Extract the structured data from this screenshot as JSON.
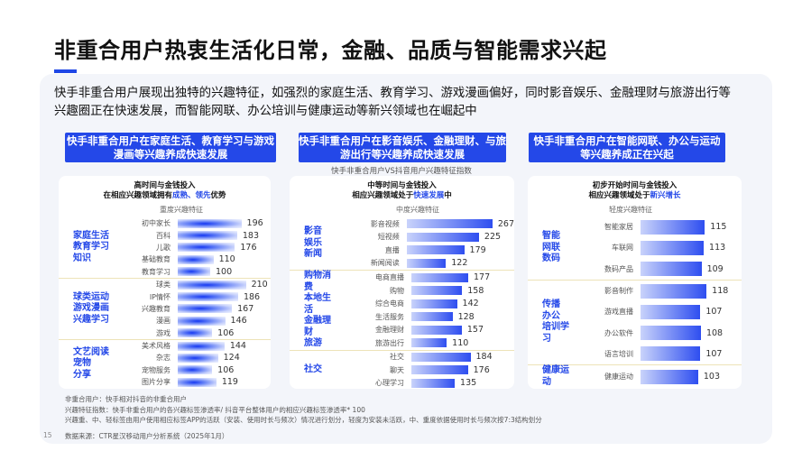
{
  "title": "非重合用户热衷生活化日常，金融、品质与智能需求兴起",
  "description": "快手非重合用户展现出独特的兴趣特征，如强烈的家庭生活、教育学习、游戏漫画偏好，同时影音娱乐、金融理财与旅游出行等兴趣圈正在快速发展，而智能网联、办公培训与健康运动等新兴领域也在崛起中",
  "headers": [
    "快手非重合用户在家庭生活、教育学习与游戏漫画等兴趣养成快速发展",
    "快手非重合用户在影音娱乐、金融理财、与旅游出行等兴趣养成快速发展",
    "快手非重合用户在智能网联、办公与运动等兴趣养成正在兴起"
  ],
  "subtitle": "快手非重合用户VS抖音用户兴趣特征指数",
  "colors": {
    "accent": "#2448e8"
  },
  "panels": [
    {
      "title1": "高时间与金钱投入",
      "title2_pre": "在相应兴趣领域拥有",
      "title2_hl": "成熟、领先",
      "title2_post": "优势",
      "level": "重度兴趣特征",
      "groups": [
        {
          "label": "家庭生活\n教育学习\n知识",
          "items": [
            [
              "初中家长",
              196
            ],
            [
              "百科",
              183
            ],
            [
              "儿歌",
              176
            ],
            [
              "基础教育",
              110
            ],
            [
              "教育学习",
              100
            ]
          ]
        },
        {
          "label": "球类运动\n游戏漫画\n兴趣学习",
          "items": [
            [
              "球类",
              210
            ],
            [
              "IP情怀",
              186
            ],
            [
              "兴趣教育",
              167
            ],
            [
              "漫画",
              146
            ],
            [
              "游戏",
              106
            ]
          ]
        },
        {
          "label": "文艺阅读\n宠物\n分享",
          "items": [
            [
              "美术风格",
              144
            ],
            [
              "杂志",
              124
            ],
            [
              "宠物服务",
              106
            ],
            [
              "图片分享",
              119
            ]
          ]
        }
      ]
    },
    {
      "title1": "中等时间与金钱投入",
      "title2_pre": "相应兴趣领域处于",
      "title2_hl": "快速发展",
      "title2_post": "中",
      "level": "中度兴趣特征",
      "groups": [
        {
          "label": "影音娱乐\n新闻",
          "items": [
            [
              "影音视频",
              267
            ],
            [
              "短视频",
              225
            ],
            [
              "直播",
              179
            ],
            [
              "新闻阅读",
              122
            ]
          ]
        },
        {
          "label": "购物消费\n本地生活\n金融理财\n旅游",
          "items": [
            [
              "电商直播",
              177
            ],
            [
              "购物",
              158
            ],
            [
              "综合电商",
              142
            ],
            [
              "生活服务",
              128
            ],
            [
              "金融理财",
              157
            ],
            [
              "旅游出行",
              110
            ]
          ]
        },
        {
          "label": "社交",
          "items": [
            [
              "社交",
              184
            ],
            [
              "聊天",
              176
            ],
            [
              "心理学习",
              135
            ]
          ]
        }
      ]
    },
    {
      "title1": "初步开始时间与金钱投入",
      "title2_pre": "相应兴趣领域处于",
      "title2_hl": "新兴增长",
      "title2_post": "",
      "level": "轻度兴趣特征",
      "groups": [
        {
          "label": "智能\n网联\n数码",
          "items": [
            [
              "智能家居",
              115
            ],
            [
              "车联网",
              113
            ],
            [
              "数码产品",
              109
            ]
          ]
        },
        {
          "label": "传播\n办公\n培训学习",
          "items": [
            [
              "影音制作",
              118
            ],
            [
              "游戏直播",
              107
            ],
            [
              "办公软件",
              108
            ],
            [
              "语言培训",
              107
            ]
          ]
        },
        {
          "label": "健康运动",
          "items": [
            [
              "健康运动",
              103
            ]
          ]
        }
      ]
    }
  ],
  "footnotes": [
    "非重合用户：快手相对抖音的非重合用户",
    "兴趣特征指数：快手非重合用户的各兴趣标签渗透率/ 抖音平台整体用户的相应兴趣标签渗透率* 100",
    "兴趣重、中、轻标签由用户使用相应标签APP的活跃（安装、使用时长与频次）情况进行划分，轻度为安装未活跃，中、重度依据使用时长与频次按7:3结构划分"
  ],
  "page_number": "15",
  "source": "数据来源：CTR星汉移动用户分析系统（2025年1月）"
}
